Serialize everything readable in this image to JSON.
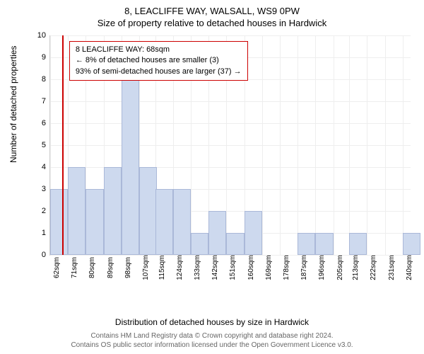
{
  "header": {
    "address": "8, LEACLIFFE WAY, WALSALL, WS9 0PW",
    "subtitle": "Size of property relative to detached houses in Hardwick"
  },
  "callout": {
    "line1": "8 LEACLIFFE WAY: 68sqm",
    "line2": "← 8% of detached houses are smaller (3)",
    "line3": "93% of semi-detached houses are larger (37) →"
  },
  "chart": {
    "type": "histogram",
    "y_label": "Number of detached properties",
    "x_label": "Distribution of detached houses by size in Hardwick",
    "ylim": [
      0,
      10
    ],
    "ytick_step": 1,
    "bar_color": "#cdd9ee",
    "bar_border": "#aab8d8",
    "marker_color": "#cc0000",
    "marker_x": 68,
    "grid_color": "#eee",
    "background_color": "#ffffff",
    "x_start": 62,
    "x_end": 244,
    "x_tick_step": 9,
    "x_unit": "sqm",
    "bin_width": 9,
    "bins": [
      {
        "x": 62,
        "count": 3
      },
      {
        "x": 71,
        "count": 4
      },
      {
        "x": 80,
        "count": 3
      },
      {
        "x": 89,
        "count": 4
      },
      {
        "x": 98,
        "count": 8
      },
      {
        "x": 107,
        "count": 4
      },
      {
        "x": 115,
        "count": 3
      },
      {
        "x": 124,
        "count": 3
      },
      {
        "x": 133,
        "count": 1
      },
      {
        "x": 142,
        "count": 2
      },
      {
        "x": 151,
        "count": 1
      },
      {
        "x": 160,
        "count": 2
      },
      {
        "x": 169,
        "count": 0
      },
      {
        "x": 178,
        "count": 0
      },
      {
        "x": 187,
        "count": 1
      },
      {
        "x": 196,
        "count": 1
      },
      {
        "x": 205,
        "count": 0
      },
      {
        "x": 213,
        "count": 1
      },
      {
        "x": 222,
        "count": 0
      },
      {
        "x": 231,
        "count": 0
      },
      {
        "x": 240,
        "count": 1
      }
    ]
  },
  "footer": {
    "line1": "Contains HM Land Registry data © Crown copyright and database right 2024.",
    "line2": "Contains OS public sector information licensed under the Open Government Licence v3.0."
  }
}
